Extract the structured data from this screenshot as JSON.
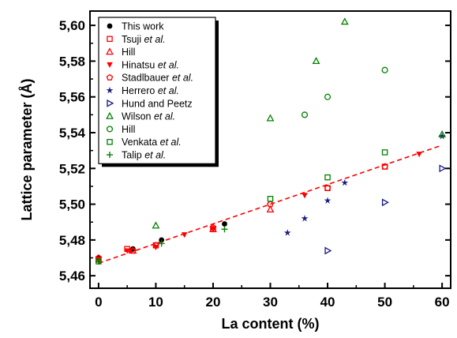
{
  "chart_data": {
    "type": "scatter",
    "xlabel": "La content (%)",
    "ylabel": "Lattice parameter (Å)",
    "xlim": [
      -1.5,
      61.5
    ],
    "ylim": [
      5.453,
      5.608
    ],
    "x_ticks": [
      0,
      10,
      20,
      30,
      40,
      50,
      60
    ],
    "x_tick_labels": [
      "0",
      "10",
      "20",
      "30",
      "40",
      "50",
      "60"
    ],
    "y_ticks": [
      5.46,
      5.48,
      5.5,
      5.52,
      5.54,
      5.56,
      5.58,
      5.6
    ],
    "y_tick_labels": [
      "5,46",
      "5,48",
      "5,50",
      "5,52",
      "5,54",
      "5,56",
      "5,58",
      "5,60"
    ],
    "legend_position": "top-left",
    "grid": false,
    "fit_line": {
      "style": "dashed",
      "color": "#ff0000",
      "x": [
        0,
        60
      ],
      "y": [
        5.467,
        5.533
      ]
    },
    "series": [
      {
        "name": "This work",
        "name_main": "This work",
        "name_italic": "",
        "name_tail": "",
        "marker": "circle-filled",
        "color": "#000000",
        "x": [
          0,
          6,
          11,
          22
        ],
        "y": [
          5.47,
          5.475,
          5.48,
          5.489
        ]
      },
      {
        "name": "Tsuji et al.",
        "name_main": "Tsuji ",
        "name_italic": "et al.",
        "name_tail": "",
        "marker": "square-open",
        "color": "#ff0000",
        "x": [
          0,
          5,
          10,
          20,
          40,
          50
        ],
        "y": [
          5.469,
          5.475,
          5.477,
          5.486,
          5.509,
          5.521
        ]
      },
      {
        "name": "Hill",
        "name_main": "Hill",
        "name_italic": "",
        "name_tail": "",
        "marker": "triangle-up-open",
        "color": "#ff0000",
        "x": [
          6,
          20,
          30
        ],
        "y": [
          5.474,
          5.486,
          5.497
        ]
      },
      {
        "name": "Hinatsu et al.",
        "name_main": "Hinatsu ",
        "name_italic": "et al.",
        "name_tail": "",
        "marker": "triangle-down-filled",
        "color": "#ff0000",
        "x": [
          0,
          5,
          10,
          15,
          20,
          36,
          56
        ],
        "y": [
          5.469,
          5.474,
          5.476,
          5.483,
          5.486,
          5.505,
          5.528
        ]
      },
      {
        "name": "Stadlbauer et al.",
        "name_main": "Stadlbauer ",
        "name_italic": "et al.",
        "name_tail": "",
        "marker": "pentagon-open",
        "color": "#ff0000",
        "x": [
          0,
          6,
          10,
          20,
          30,
          40,
          50
        ],
        "y": [
          5.47,
          5.474,
          5.477,
          5.487,
          5.5,
          5.509,
          5.521
        ]
      },
      {
        "name": "Herrero et al.",
        "name_main": "Herrero ",
        "name_italic": "et al.",
        "name_tail": "",
        "marker": "star-filled",
        "color": "#1a1a80",
        "x": [
          33,
          36,
          40,
          43,
          60
        ],
        "y": [
          5.484,
          5.492,
          5.502,
          5.512,
          5.538
        ]
      },
      {
        "name": "Hund and Peetz",
        "name_main": "Hund and Peetz",
        "name_italic": "",
        "name_tail": "",
        "marker": "triangle-right-open",
        "color": "#1a1a80",
        "x": [
          40,
          50,
          60
        ],
        "y": [
          5.474,
          5.501,
          5.52
        ]
      },
      {
        "name": "Wilson et al.",
        "name_main": "Wilson ",
        "name_italic": "et al.",
        "name_tail": "",
        "marker": "triangle-up-open",
        "color": "#008000",
        "x": [
          10,
          30,
          38,
          43,
          60
        ],
        "y": [
          5.488,
          5.548,
          5.58,
          5.602,
          5.539
        ]
      },
      {
        "name": "Hill",
        "name_main": "Hill",
        "name_italic": "",
        "name_tail": "",
        "marker": "circle-open",
        "color": "#008000",
        "x": [
          36,
          40,
          50
        ],
        "y": [
          5.55,
          5.56,
          5.575
        ]
      },
      {
        "name": "Venkata et al.",
        "name_main": "Venkata ",
        "name_italic": "et al.",
        "name_tail": "",
        "marker": "square-open",
        "color": "#008000",
        "x": [
          0,
          30,
          40,
          50
        ],
        "y": [
          5.468,
          5.503,
          5.515,
          5.529
        ]
      },
      {
        "name": "Talip et al.",
        "name_main": "Talip ",
        "name_italic": "et al.",
        "name_tail": "",
        "marker": "plus",
        "color": "#008000",
        "x": [
          0,
          11,
          22
        ],
        "y": [
          5.468,
          5.478,
          5.486
        ]
      }
    ]
  }
}
